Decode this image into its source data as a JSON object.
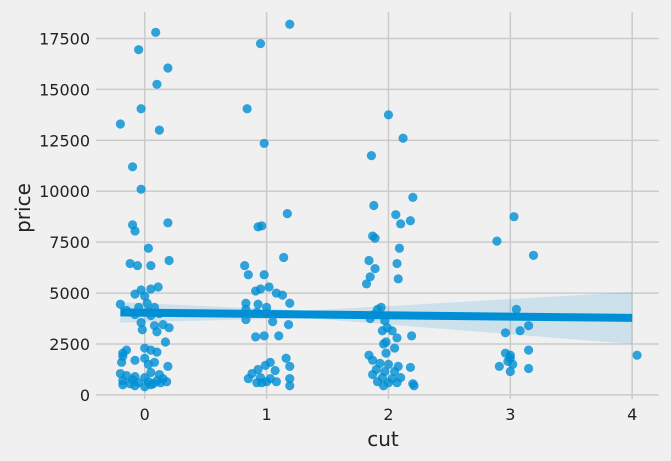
{
  "chart_data": {
    "type": "scatter",
    "title": "",
    "xlabel": "cut",
    "ylabel": "price",
    "xlim": [
      -0.4,
      4.22
    ],
    "ylim": [
      -200,
      18800
    ],
    "xticks": [
      0,
      1,
      2,
      3,
      4
    ],
    "xtick_labels": [
      "0",
      "1",
      "2",
      "3",
      "4"
    ],
    "yticks": [
      0,
      2500,
      5000,
      7500,
      10000,
      12500,
      15000,
      17500
    ],
    "ytick_labels": [
      "0",
      "2500",
      "5000",
      "7500",
      "10000",
      "12500",
      "15000",
      "17500"
    ],
    "grid": true,
    "colors": {
      "points": "#008fd5",
      "line": "#008fd5",
      "band": "#008fd5",
      "grid": "#cbcbcb",
      "background": "#f0f0f0"
    },
    "regression": {
      "x_start": -0.2,
      "y_start": 4050,
      "x_end": 4.0,
      "y_end": 3780,
      "ci_upper_start": 4550,
      "ci_lower_start": 3550,
      "ci_upper_end": 5050,
      "ci_lower_end": 2500
    },
    "points": [
      [
        0.09,
        17800
      ],
      [
        -0.05,
        16950
      ],
      [
        0.19,
        16050
      ],
      [
        0.1,
        15250
      ],
      [
        -0.03,
        14050
      ],
      [
        -0.2,
        13300
      ],
      [
        0.12,
        13000
      ],
      [
        -0.1,
        11200
      ],
      [
        -0.03,
        10100
      ],
      [
        0.19,
        8450
      ],
      [
        -0.1,
        8350
      ],
      [
        -0.08,
        8050
      ],
      [
        0.03,
        7200
      ],
      [
        0.2,
        6600
      ],
      [
        -0.12,
        6450
      ],
      [
        -0.06,
        6350
      ],
      [
        0.05,
        6350
      ],
      [
        -0.03,
        5150
      ],
      [
        0.05,
        5200
      ],
      [
        0.11,
        5300
      ],
      [
        -0.08,
        4950
      ],
      [
        0.0,
        4850
      ],
      [
        -0.2,
        4450
      ],
      [
        0.02,
        4500
      ],
      [
        -0.05,
        4300
      ],
      [
        0.08,
        4300
      ],
      [
        -0.15,
        4150
      ],
      [
        0.03,
        4100
      ],
      [
        0.12,
        4000
      ],
      [
        -0.08,
        3950
      ],
      [
        0.05,
        3900
      ],
      [
        -0.03,
        3550
      ],
      [
        0.08,
        3400
      ],
      [
        0.15,
        3450
      ],
      [
        0.2,
        3300
      ],
      [
        -0.02,
        3200
      ],
      [
        0.1,
        3100
      ],
      [
        0.17,
        2600
      ],
      [
        0.0,
        2300
      ],
      [
        -0.15,
        2200
      ],
      [
        0.05,
        2200
      ],
      [
        -0.18,
        2050
      ],
      [
        0.1,
        2100
      ],
      [
        -0.18,
        1900
      ],
      [
        -0.08,
        1700
      ],
      [
        0.0,
        1800
      ],
      [
        -0.19,
        1600
      ],
      [
        0.08,
        1600
      ],
      [
        0.03,
        1500
      ],
      [
        0.19,
        1400
      ],
      [
        -0.2,
        1050
      ],
      [
        -0.15,
        950
      ],
      [
        0.05,
        1100
      ],
      [
        0.12,
        1000
      ],
      [
        -0.08,
        900
      ],
      [
        0.0,
        850
      ],
      [
        0.15,
        800
      ],
      [
        -0.18,
        700
      ],
      [
        -0.1,
        750
      ],
      [
        -0.05,
        600
      ],
      [
        0.03,
        650
      ],
      [
        0.1,
        700
      ],
      [
        0.18,
        650
      ],
      [
        -0.18,
        500
      ],
      [
        -0.08,
        450
      ],
      [
        0.05,
        500
      ],
      [
        0.13,
        600
      ],
      [
        0.0,
        400
      ],
      [
        -0.12,
        550
      ],
      [
        0.07,
        550
      ],
      [
        1.19,
        18200
      ],
      [
        0.95,
        17250
      ],
      [
        0.84,
        14050
      ],
      [
        0.98,
        12350
      ],
      [
        1.17,
        8900
      ],
      [
        0.96,
        8300
      ],
      [
        0.93,
        8250
      ],
      [
        1.14,
        6750
      ],
      [
        0.82,
        6350
      ],
      [
        0.85,
        5900
      ],
      [
        0.98,
        5900
      ],
      [
        0.91,
        5100
      ],
      [
        1.02,
        5300
      ],
      [
        0.95,
        5200
      ],
      [
        1.08,
        5000
      ],
      [
        1.13,
        4900
      ],
      [
        0.83,
        4500
      ],
      [
        0.93,
        4450
      ],
      [
        1.0,
        4300
      ],
      [
        1.19,
        4500
      ],
      [
        0.83,
        4200
      ],
      [
        0.92,
        4050
      ],
      [
        1.01,
        4000
      ],
      [
        0.83,
        3700
      ],
      [
        1.05,
        3600
      ],
      [
        1.18,
        3450
      ],
      [
        0.91,
        2850
      ],
      [
        0.98,
        2900
      ],
      [
        1.1,
        2900
      ],
      [
        1.16,
        1800
      ],
      [
        1.03,
        1600
      ],
      [
        0.99,
        1450
      ],
      [
        1.19,
        1400
      ],
      [
        0.93,
        1250
      ],
      [
        1.07,
        1200
      ],
      [
        0.88,
        1050
      ],
      [
        0.85,
        800
      ],
      [
        0.95,
        850
      ],
      [
        1.03,
        800
      ],
      [
        1.19,
        800
      ],
      [
        0.92,
        600
      ],
      [
        1.0,
        650
      ],
      [
        1.08,
        650
      ],
      [
        0.96,
        600
      ],
      [
        1.19,
        450
      ],
      [
        2.0,
        13750
      ],
      [
        2.12,
        12600
      ],
      [
        1.86,
        11750
      ],
      [
        2.2,
        9700
      ],
      [
        1.88,
        9300
      ],
      [
        2.06,
        8850
      ],
      [
        2.18,
        8550
      ],
      [
        2.1,
        8400
      ],
      [
        1.87,
        7800
      ],
      [
        1.89,
        7700
      ],
      [
        2.09,
        7200
      ],
      [
        1.84,
        6600
      ],
      [
        2.07,
        6450
      ],
      [
        1.89,
        6200
      ],
      [
        1.85,
        5800
      ],
      [
        2.08,
        5700
      ],
      [
        1.82,
        5450
      ],
      [
        1.94,
        4300
      ],
      [
        1.91,
        4200
      ],
      [
        1.88,
        3950
      ],
      [
        1.85,
        3750
      ],
      [
        1.97,
        3650
      ],
      [
        1.99,
        3300
      ],
      [
        1.95,
        3150
      ],
      [
        2.03,
        3150
      ],
      [
        2.19,
        2900
      ],
      [
        2.07,
        2800
      ],
      [
        1.98,
        2600
      ],
      [
        1.96,
        2500
      ],
      [
        2.05,
        2300
      ],
      [
        1.84,
        1950
      ],
      [
        1.98,
        2050
      ],
      [
        1.87,
        1700
      ],
      [
        1.93,
        1550
      ],
      [
        2.0,
        1500
      ],
      [
        2.08,
        1400
      ],
      [
        2.18,
        1350
      ],
      [
        1.9,
        1250
      ],
      [
        1.97,
        1150
      ],
      [
        2.05,
        1150
      ],
      [
        1.87,
        1000
      ],
      [
        1.95,
        850
      ],
      [
        2.03,
        800
      ],
      [
        2.1,
        850
      ],
      [
        1.91,
        650
      ],
      [
        2.0,
        600
      ],
      [
        2.07,
        600
      ],
      [
        1.96,
        450
      ],
      [
        2.2,
        550
      ],
      [
        2.21,
        450
      ],
      [
        3.03,
        8750
      ],
      [
        2.89,
        7550
      ],
      [
        3.19,
        6850
      ],
      [
        3.05,
        4200
      ],
      [
        3.15,
        3400
      ],
      [
        2.96,
        3050
      ],
      [
        3.08,
        3150
      ],
      [
        3.15,
        2200
      ],
      [
        2.96,
        2050
      ],
      [
        3.0,
        1950
      ],
      [
        3.0,
        1800
      ],
      [
        2.98,
        1650
      ],
      [
        2.91,
        1400
      ],
      [
        3.02,
        1500
      ],
      [
        3.15,
        1300
      ],
      [
        3.0,
        1150
      ],
      [
        4.04,
        1950
      ]
    ]
  }
}
